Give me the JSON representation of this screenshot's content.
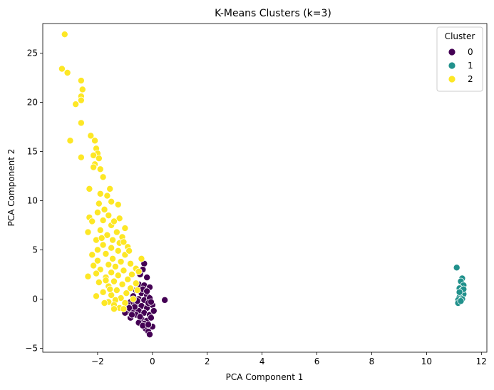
{
  "chart_data": {
    "type": "scatter",
    "title": "K-Means Clusters (k=3)",
    "xlabel": "PCA Component 1",
    "ylabel": "PCA Component 2",
    "xlim": [
      -4.0,
      12.2
    ],
    "ylim": [
      -5.4,
      28.0
    ],
    "xticks": [
      -2,
      0,
      2,
      4,
      6,
      8,
      10,
      12
    ],
    "yticks": [
      -5,
      0,
      5,
      10,
      15,
      20,
      25
    ],
    "grid": false,
    "legend": {
      "title": "Cluster",
      "placement": "top-right"
    },
    "series": [
      {
        "name": "0",
        "color": "#440154",
        "points": [
          [
            -0.3,
            3.6
          ],
          [
            -0.35,
            3.0
          ],
          [
            -0.2,
            2.2
          ],
          [
            -0.45,
            2.5
          ],
          [
            -0.5,
            1.5
          ],
          [
            -0.3,
            1.4
          ],
          [
            -0.1,
            1.2
          ],
          [
            -0.6,
            0.9
          ],
          [
            -0.4,
            0.6
          ],
          [
            -0.2,
            0.4
          ],
          [
            -0.7,
            0.3
          ],
          [
            -0.5,
            0.0
          ],
          [
            -0.3,
            -0.1
          ],
          [
            -0.1,
            0.1
          ],
          [
            -0.8,
            -0.3
          ],
          [
            -0.9,
            -0.6
          ],
          [
            -0.6,
            -0.5
          ],
          [
            -0.4,
            -0.7
          ],
          [
            -0.2,
            -0.9
          ],
          [
            0.0,
            -0.6
          ],
          [
            -0.7,
            -1.0
          ],
          [
            -0.5,
            -1.2
          ],
          [
            -0.3,
            -1.4
          ],
          [
            -0.1,
            -1.6
          ],
          [
            -0.9,
            -1.3
          ],
          [
            -1.0,
            -1.4
          ],
          [
            -0.6,
            -1.6
          ],
          [
            -0.8,
            -1.9
          ],
          [
            -0.4,
            -2.0
          ],
          [
            -0.2,
            -2.2
          ],
          [
            -0.05,
            -1.9
          ],
          [
            -0.3,
            -2.5
          ],
          [
            -0.5,
            -2.4
          ],
          [
            -0.25,
            -3.0
          ],
          [
            -0.15,
            -3.3
          ],
          [
            -0.1,
            -3.6
          ],
          [
            0.0,
            -2.8
          ],
          [
            0.05,
            -1.2
          ],
          [
            -0.15,
            -0.4
          ],
          [
            0.45,
            -0.1
          ],
          [
            -0.35,
            1.0
          ],
          [
            -0.55,
            -0.2
          ],
          [
            -0.65,
            -0.8
          ],
          [
            -0.45,
            -1.8
          ],
          [
            -0.35,
            -2.7
          ],
          [
            -0.05,
            -0.3
          ],
          [
            -0.2,
            0.8
          ],
          [
            -0.75,
            -1.6
          ],
          [
            -0.85,
            -0.9
          ],
          [
            -0.15,
            -2.6
          ]
        ]
      },
      {
        "name": "1",
        "color": "#21918c",
        "points": [
          [
            11.1,
            3.2
          ],
          [
            11.3,
            2.1
          ],
          [
            11.25,
            1.8
          ],
          [
            11.35,
            1.4
          ],
          [
            11.2,
            1.1
          ],
          [
            11.3,
            0.9
          ],
          [
            11.25,
            0.6
          ],
          [
            11.35,
            0.5
          ],
          [
            11.2,
            0.2
          ],
          [
            11.15,
            -0.1
          ],
          [
            11.15,
            -0.4
          ],
          [
            11.3,
            0.0
          ],
          [
            11.25,
            -0.2
          ],
          [
            11.35,
            1.0
          ],
          [
            11.2,
            0.7
          ]
        ]
      },
      {
        "name": "2",
        "color": "#fde725",
        "points": [
          [
            -3.2,
            26.9
          ],
          [
            -3.3,
            23.4
          ],
          [
            -3.1,
            23.0
          ],
          [
            -2.6,
            22.2
          ],
          [
            -2.55,
            21.3
          ],
          [
            -2.6,
            20.6
          ],
          [
            -2.6,
            20.2
          ],
          [
            -2.8,
            19.8
          ],
          [
            -2.6,
            17.9
          ],
          [
            -3.0,
            16.1
          ],
          [
            -2.25,
            16.6
          ],
          [
            -2.1,
            16.1
          ],
          [
            -2.05,
            15.3
          ],
          [
            -2.0,
            14.8
          ],
          [
            -2.15,
            14.6
          ],
          [
            -2.6,
            14.4
          ],
          [
            -1.95,
            14.3
          ],
          [
            -2.1,
            13.7
          ],
          [
            -1.9,
            13.2
          ],
          [
            -1.8,
            12.4
          ],
          [
            -2.15,
            13.4
          ],
          [
            -1.55,
            11.2
          ],
          [
            -2.3,
            11.2
          ],
          [
            -1.65,
            10.5
          ],
          [
            -1.9,
            10.7
          ],
          [
            -1.5,
            9.9
          ],
          [
            -1.95,
            9.7
          ],
          [
            -1.25,
            9.6
          ],
          [
            -1.75,
            9.1
          ],
          [
            -2.0,
            8.8
          ],
          [
            -1.6,
            8.5
          ],
          [
            -2.3,
            8.3
          ],
          [
            -1.2,
            8.2
          ],
          [
            -1.8,
            8.0
          ],
          [
            -2.2,
            7.9
          ],
          [
            -1.5,
            7.5
          ],
          [
            -1.0,
            7.2
          ],
          [
            -1.9,
            7.0
          ],
          [
            -2.35,
            6.8
          ],
          [
            -1.3,
            6.8
          ],
          [
            -1.65,
            6.5
          ],
          [
            -1.1,
            6.3
          ],
          [
            -2.05,
            6.0
          ],
          [
            -1.45,
            6.0
          ],
          [
            -1.2,
            5.7
          ],
          [
            -1.8,
            5.5
          ],
          [
            -0.9,
            5.3
          ],
          [
            -1.5,
            5.2
          ],
          [
            -2.0,
            5.0
          ],
          [
            -1.25,
            4.9
          ],
          [
            -2.2,
            4.5
          ],
          [
            -1.7,
            4.6
          ],
          [
            -1.0,
            4.5
          ],
          [
            -0.4,
            4.1
          ],
          [
            -1.45,
            4.1
          ],
          [
            -2.0,
            3.9
          ],
          [
            -1.15,
            3.8
          ],
          [
            -0.8,
            3.6
          ],
          [
            -1.6,
            3.5
          ],
          [
            -2.15,
            3.4
          ],
          [
            -1.35,
            3.3
          ],
          [
            -0.6,
            3.1
          ],
          [
            -1.9,
            3.0
          ],
          [
            -1.05,
            2.9
          ],
          [
            -1.5,
            2.7
          ],
          [
            -2.05,
            2.6
          ],
          [
            -0.75,
            2.5
          ],
          [
            -1.25,
            2.4
          ],
          [
            -2.35,
            2.3
          ],
          [
            -1.7,
            2.2
          ],
          [
            -0.9,
            2.0
          ],
          [
            -1.4,
            1.8
          ],
          [
            -1.95,
            1.7
          ],
          [
            -0.6,
            1.6
          ],
          [
            -1.1,
            1.5
          ],
          [
            -1.6,
            1.3
          ],
          [
            -0.8,
            1.1
          ],
          [
            -1.3,
            0.9
          ],
          [
            -1.8,
            0.7
          ],
          [
            -0.95,
            0.6
          ],
          [
            -1.5,
            0.4
          ],
          [
            -2.05,
            0.3
          ],
          [
            -1.15,
            0.1
          ],
          [
            -0.7,
            0.0
          ],
          [
            -1.35,
            -0.1
          ],
          [
            -1.6,
            -0.3
          ],
          [
            -1.0,
            -0.4
          ],
          [
            -1.4,
            -0.6
          ],
          [
            -1.2,
            -0.9
          ],
          [
            -1.05,
            -1.0
          ],
          [
            -1.4,
            -1.0
          ],
          [
            -1.75,
            -0.4
          ],
          [
            -1.55,
            1.0
          ],
          [
            -0.5,
            2.8
          ],
          [
            -1.05,
            5.8
          ],
          [
            -1.4,
            7.9
          ],
          [
            -1.85,
            6.2
          ],
          [
            -0.55,
            0.9
          ],
          [
            -0.85,
            4.9
          ],
          [
            -1.7,
            1.9
          ]
        ]
      }
    ]
  }
}
